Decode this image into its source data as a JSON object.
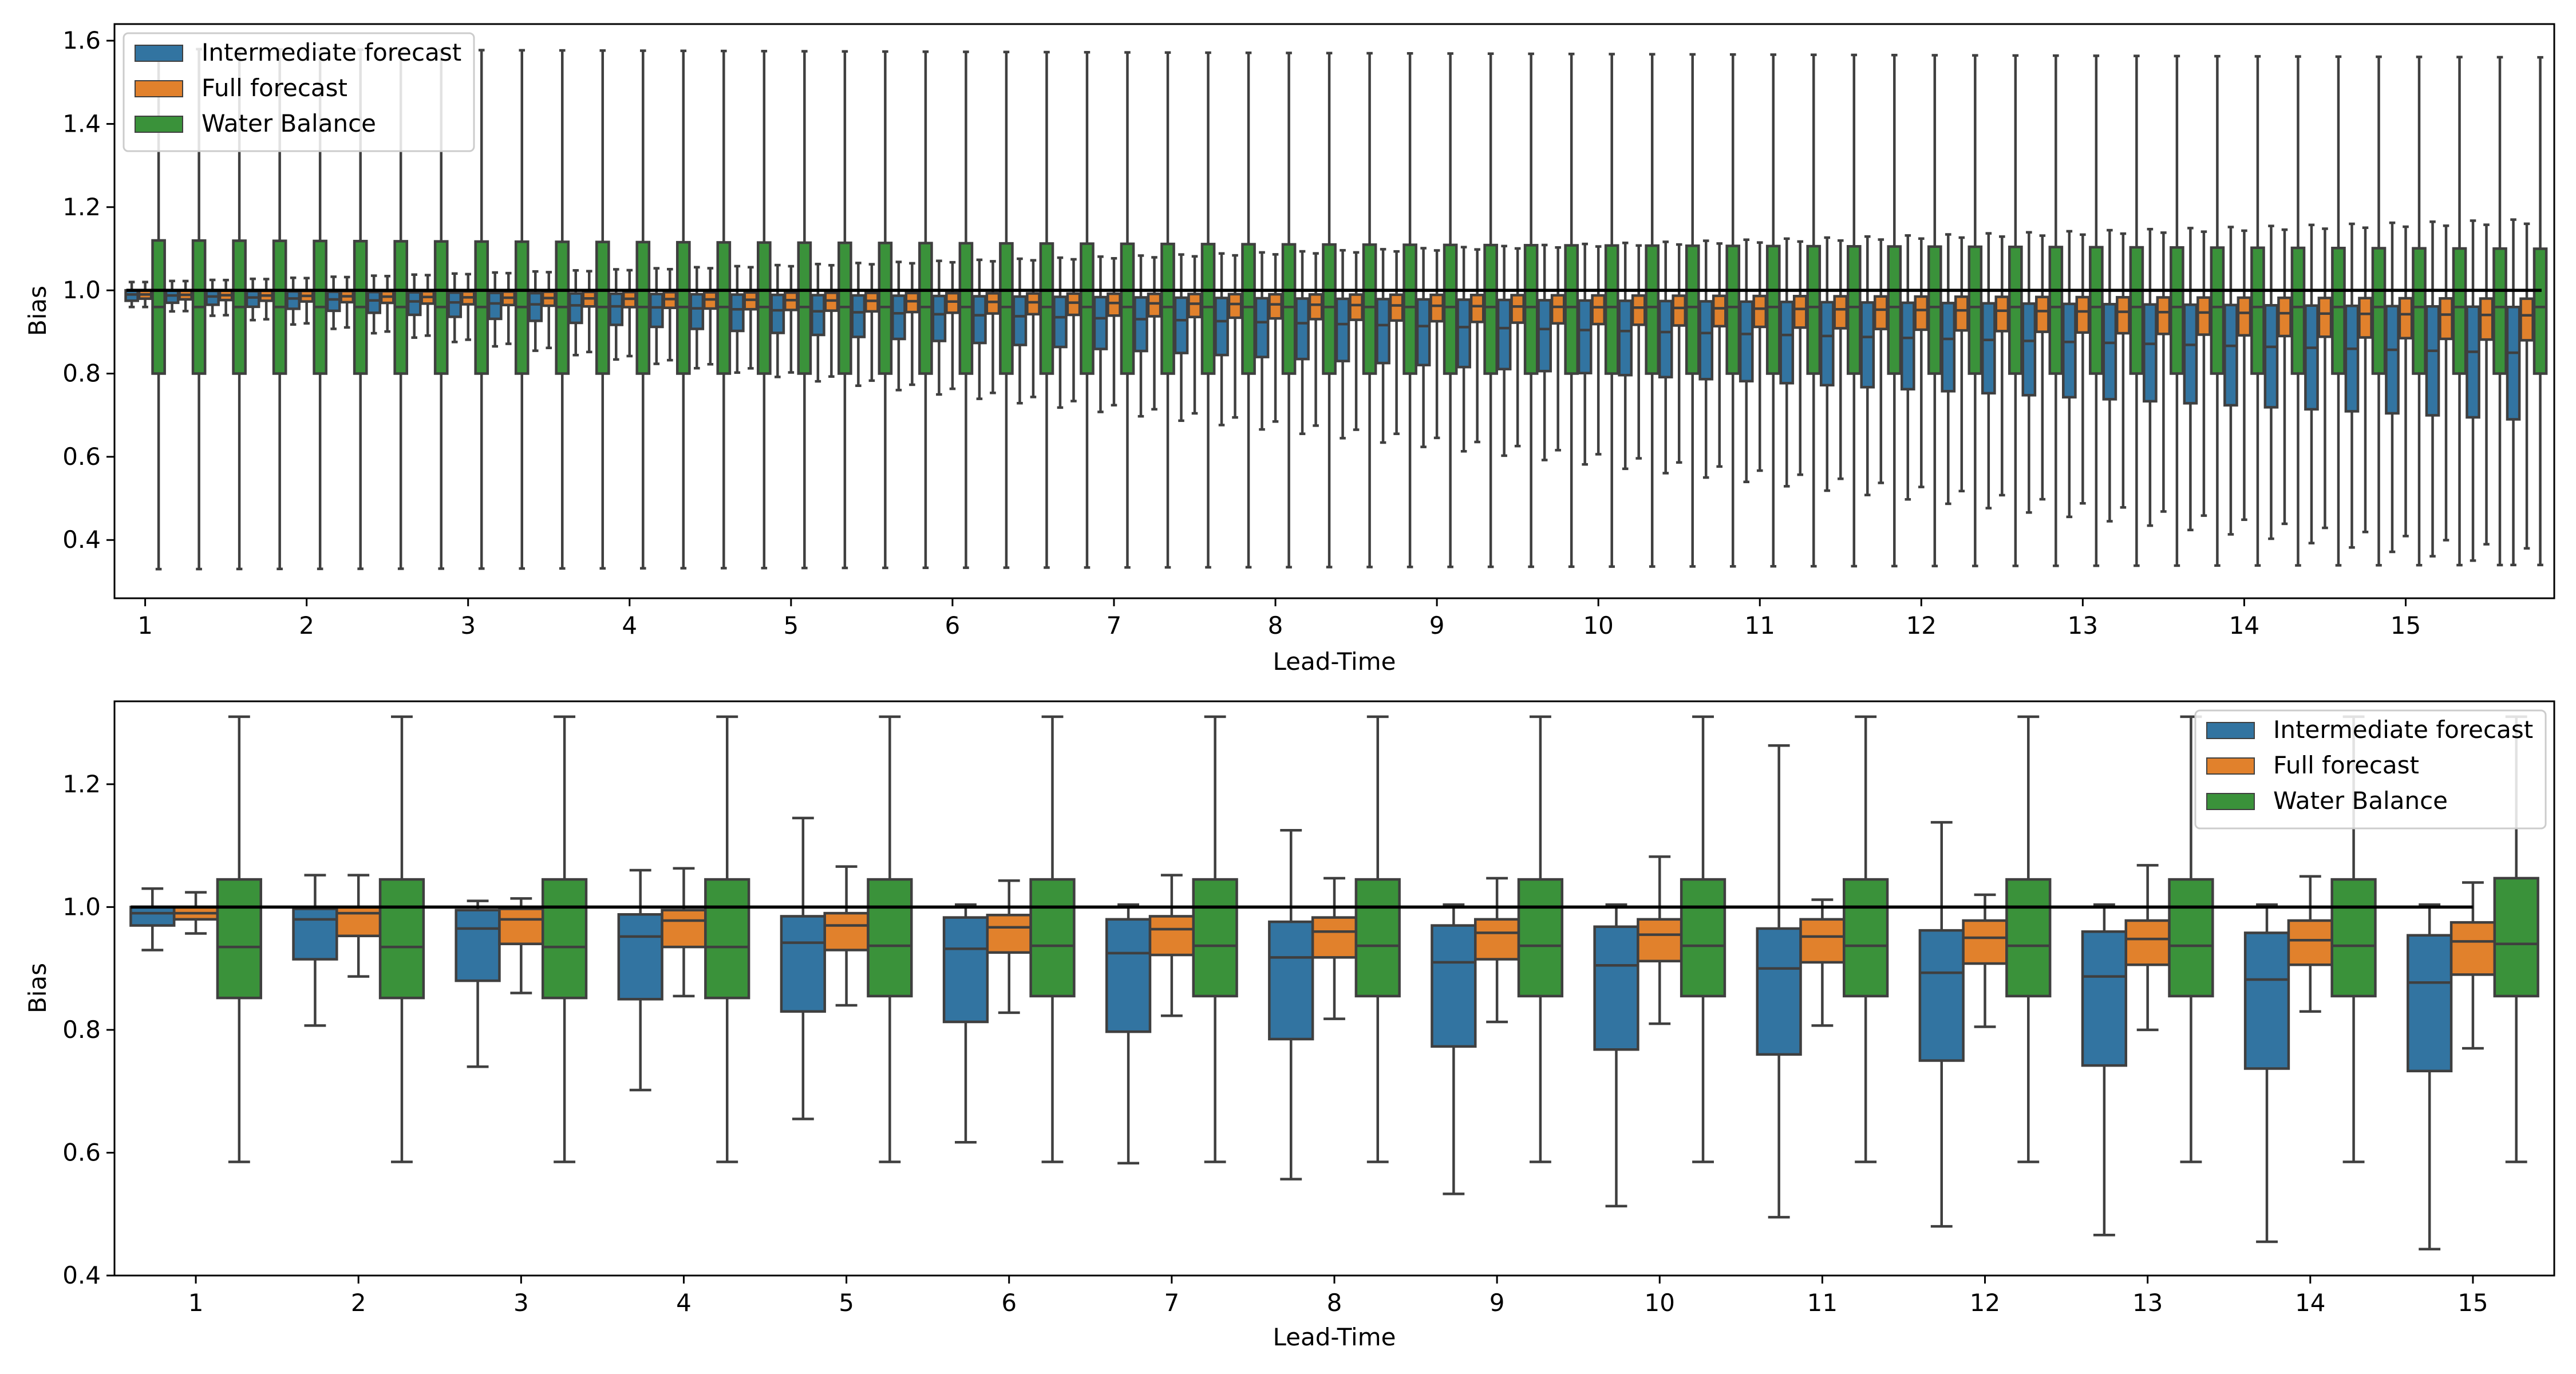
{
  "colors": {
    "intermediate": "#3274a1",
    "full": "#e1812c",
    "water": "#3a923a",
    "line": "#3f3f3f",
    "reference": "#000000"
  },
  "chart_data": [
    {
      "type": "box",
      "xlabel": "Lead-Time",
      "ylabel": "Bias",
      "ylim": [
        0.26,
        1.64
      ],
      "yticks": [
        "0.4",
        "0.6",
        "0.8",
        "1.0",
        "1.2",
        "1.4",
        "1.6"
      ],
      "xticks": [
        "1",
        "2",
        "3",
        "4",
        "5",
        "6",
        "7",
        "8",
        "9",
        "10",
        "11",
        "12",
        "13",
        "14",
        "15"
      ],
      "legend_position": "top-left",
      "reference_line": 1.0,
      "n_groups": 60,
      "group_step": 0.25,
      "series": [
        {
          "name": "Intermediate forecast",
          "start": {
            "q1": 0.975,
            "median": 0.99,
            "q3": 1.0,
            "wlo": 0.96,
            "whi": 1.02
          },
          "end": {
            "q1": 0.69,
            "median": 0.85,
            "q3": 0.96,
            "wlo": 0.34,
            "whi": 1.17
          }
        },
        {
          "name": "Full forecast",
          "start": {
            "q1": 0.98,
            "median": 0.99,
            "q3": 1.0,
            "wlo": 0.96,
            "whi": 1.02
          },
          "end": {
            "q1": 0.88,
            "median": 0.94,
            "q3": 0.98,
            "wlo": 0.38,
            "whi": 1.16
          }
        },
        {
          "name": "Water Balance",
          "start": {
            "q1": 0.8,
            "median": 0.96,
            "q3": 1.12,
            "wlo": 0.33,
            "whi": 1.58
          },
          "end": {
            "q1": 0.8,
            "median": 0.96,
            "q3": 1.1,
            "wlo": 0.34,
            "whi": 1.56
          }
        }
      ]
    },
    {
      "type": "box",
      "xlabel": "Lead-Time",
      "ylabel": "Bias",
      "ylim": [
        0.4,
        1.335
      ],
      "yticks": [
        "0.4",
        "0.6",
        "0.8",
        "1.0",
        "1.2"
      ],
      "categories": [
        "1",
        "2",
        "3",
        "4",
        "5",
        "6",
        "7",
        "8",
        "9",
        "10",
        "11",
        "12",
        "13",
        "14",
        "15"
      ],
      "legend_position": "top-right",
      "reference_line": 1.0,
      "series": [
        {
          "name": "Intermediate forecast",
          "boxes": [
            {
              "wlo": 0.93,
              "q1": 0.97,
              "median": 0.99,
              "q3": 1.0,
              "whi": 1.03
            },
            {
              "wlo": 0.807,
              "q1": 0.915,
              "median": 0.98,
              "q3": 0.997,
              "whi": 1.052
            },
            {
              "wlo": 0.74,
              "q1": 0.88,
              "median": 0.965,
              "q3": 0.995,
              "whi": 1.01
            },
            {
              "wlo": 0.702,
              "q1": 0.85,
              "median": 0.952,
              "q3": 0.988,
              "whi": 1.06
            },
            {
              "wlo": 0.655,
              "q1": 0.83,
              "median": 0.942,
              "q3": 0.985,
              "whi": 1.145
            },
            {
              "wlo": 0.617,
              "q1": 0.813,
              "median": 0.932,
              "q3": 0.983,
              "whi": 1.004
            },
            {
              "wlo": 0.583,
              "q1": 0.797,
              "median": 0.925,
              "q3": 0.98,
              "whi": 1.004
            },
            {
              "wlo": 0.557,
              "q1": 0.785,
              "median": 0.918,
              "q3": 0.976,
              "whi": 1.125
            },
            {
              "wlo": 0.533,
              "q1": 0.773,
              "median": 0.91,
              "q3": 0.97,
              "whi": 1.004
            },
            {
              "wlo": 0.513,
              "q1": 0.768,
              "median": 0.905,
              "q3": 0.968,
              "whi": 1.004
            },
            {
              "wlo": 0.495,
              "q1": 0.76,
              "median": 0.9,
              "q3": 0.965,
              "whi": 1.263
            },
            {
              "wlo": 0.48,
              "q1": 0.75,
              "median": 0.893,
              "q3": 0.962,
              "whi": 1.138
            },
            {
              "wlo": 0.466,
              "q1": 0.742,
              "median": 0.887,
              "q3": 0.96,
              "whi": 1.004
            },
            {
              "wlo": 0.455,
              "q1": 0.737,
              "median": 0.882,
              "q3": 0.958,
              "whi": 1.004
            },
            {
              "wlo": 0.443,
              "q1": 0.733,
              "median": 0.877,
              "q3": 0.954,
              "whi": 1.004
            }
          ]
        },
        {
          "name": "Full forecast",
          "boxes": [
            {
              "wlo": 0.957,
              "q1": 0.98,
              "median": 0.99,
              "q3": 1.0,
              "whi": 1.024
            },
            {
              "wlo": 0.887,
              "q1": 0.953,
              "median": 0.99,
              "q3": 1.0,
              "whi": 1.052
            },
            {
              "wlo": 0.86,
              "q1": 0.94,
              "median": 0.98,
              "q3": 0.997,
              "whi": 1.014
            },
            {
              "wlo": 0.855,
              "q1": 0.935,
              "median": 0.978,
              "q3": 0.995,
              "whi": 1.063
            },
            {
              "wlo": 0.84,
              "q1": 0.93,
              "median": 0.97,
              "q3": 0.99,
              "whi": 1.066
            },
            {
              "wlo": 0.828,
              "q1": 0.926,
              "median": 0.967,
              "q3": 0.987,
              "whi": 1.043
            },
            {
              "wlo": 0.823,
              "q1": 0.922,
              "median": 0.964,
              "q3": 0.985,
              "whi": 1.052
            },
            {
              "wlo": 0.818,
              "q1": 0.918,
              "median": 0.96,
              "q3": 0.983,
              "whi": 1.047
            },
            {
              "wlo": 0.813,
              "q1": 0.915,
              "median": 0.958,
              "q3": 0.98,
              "whi": 1.047
            },
            {
              "wlo": 0.81,
              "q1": 0.912,
              "median": 0.955,
              "q3": 0.98,
              "whi": 1.082
            },
            {
              "wlo": 0.807,
              "q1": 0.91,
              "median": 0.952,
              "q3": 0.98,
              "whi": 1.012
            },
            {
              "wlo": 0.805,
              "q1": 0.908,
              "median": 0.95,
              "q3": 0.978,
              "whi": 1.02
            },
            {
              "wlo": 0.8,
              "q1": 0.906,
              "median": 0.948,
              "q3": 0.978,
              "whi": 1.068
            },
            {
              "wlo": 0.83,
              "q1": 0.906,
              "median": 0.946,
              "q3": 0.978,
              "whi": 1.05
            },
            {
              "wlo": 0.77,
              "q1": 0.89,
              "median": 0.944,
              "q3": 0.975,
              "whi": 1.04
            }
          ]
        },
        {
          "name": "Water Balance",
          "boxes": [
            {
              "wlo": 0.585,
              "q1": 0.852,
              "median": 0.935,
              "q3": 1.045,
              "whi": 1.31
            },
            {
              "wlo": 0.585,
              "q1": 0.852,
              "median": 0.935,
              "q3": 1.045,
              "whi": 1.31
            },
            {
              "wlo": 0.585,
              "q1": 0.852,
              "median": 0.935,
              "q3": 1.045,
              "whi": 1.31
            },
            {
              "wlo": 0.585,
              "q1": 0.852,
              "median": 0.935,
              "q3": 1.045,
              "whi": 1.31
            },
            {
              "wlo": 0.585,
              "q1": 0.855,
              "median": 0.937,
              "q3": 1.045,
              "whi": 1.31
            },
            {
              "wlo": 0.585,
              "q1": 0.855,
              "median": 0.937,
              "q3": 1.045,
              "whi": 1.31
            },
            {
              "wlo": 0.585,
              "q1": 0.855,
              "median": 0.937,
              "q3": 1.045,
              "whi": 1.31
            },
            {
              "wlo": 0.585,
              "q1": 0.855,
              "median": 0.937,
              "q3": 1.045,
              "whi": 1.31
            },
            {
              "wlo": 0.585,
              "q1": 0.855,
              "median": 0.937,
              "q3": 1.045,
              "whi": 1.31
            },
            {
              "wlo": 0.585,
              "q1": 0.855,
              "median": 0.937,
              "q3": 1.045,
              "whi": 1.31
            },
            {
              "wlo": 0.585,
              "q1": 0.855,
              "median": 0.937,
              "q3": 1.045,
              "whi": 1.31
            },
            {
              "wlo": 0.585,
              "q1": 0.855,
              "median": 0.937,
              "q3": 1.045,
              "whi": 1.31
            },
            {
              "wlo": 0.585,
              "q1": 0.855,
              "median": 0.937,
              "q3": 1.045,
              "whi": 1.31
            },
            {
              "wlo": 0.585,
              "q1": 0.855,
              "median": 0.937,
              "q3": 1.045,
              "whi": 1.31
            },
            {
              "wlo": 0.585,
              "q1": 0.855,
              "median": 0.94,
              "q3": 1.047,
              "whi": 1.31
            }
          ]
        }
      ]
    }
  ]
}
